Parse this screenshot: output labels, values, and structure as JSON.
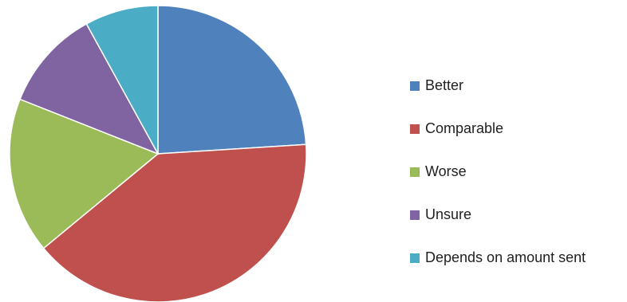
{
  "chart_data": {
    "type": "pie",
    "title": "",
    "legend_position": "right",
    "start_angle_deg": 0,
    "direction": "clockwise",
    "slices": [
      {
        "label": "Better",
        "value": 24,
        "color": "#4f81bd"
      },
      {
        "label": "Comparable",
        "value": 40,
        "color": "#c0504d"
      },
      {
        "label": "Worse",
        "value": 17,
        "color": "#9bbb59"
      },
      {
        "label": "Unsure",
        "value": 11,
        "color": "#8064a2"
      },
      {
        "label": "Depends on amount sent",
        "value": 8,
        "color": "#4bacc6"
      }
    ]
  }
}
